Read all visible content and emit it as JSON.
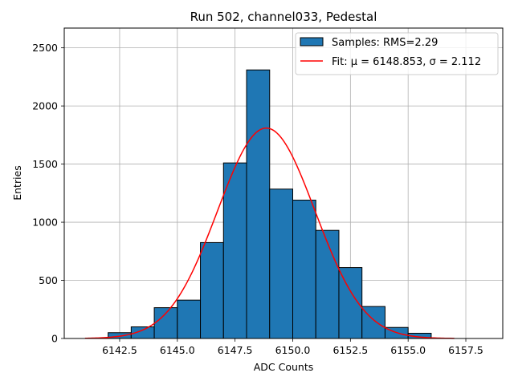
{
  "chart_data": {
    "type": "histogram",
    "title": "Run 502, channel033, Pedestal",
    "xlabel": "ADC Counts",
    "ylabel": "Entries",
    "xlim": [
      6140.1,
      6159.1
    ],
    "ylim": [
      0,
      2670
    ],
    "x_ticks": [
      "6142.5",
      "6145.0",
      "6147.5",
      "6150.0",
      "6152.5",
      "6155.0",
      "6157.5"
    ],
    "y_ticks": [
      "0",
      "500",
      "1000",
      "1500",
      "2000",
      "2500"
    ],
    "grid": true,
    "legend_position": "top-right",
    "bins": [
      {
        "left": 6142,
        "right": 6143,
        "count": 50
      },
      {
        "left": 6143,
        "right": 6144,
        "count": 100
      },
      {
        "left": 6144,
        "right": 6145,
        "count": 265
      },
      {
        "left": 6145,
        "right": 6146,
        "count": 330
      },
      {
        "left": 6146,
        "right": 6147,
        "count": 825
      },
      {
        "left": 6147,
        "right": 6148,
        "count": 1510
      },
      {
        "left": 6148,
        "right": 6149,
        "count": 2310
      },
      {
        "left": 6149,
        "right": 6150,
        "count": 1285
      },
      {
        "left": 6150,
        "right": 6151,
        "count": 1190
      },
      {
        "left": 6151,
        "right": 6152,
        "count": 930
      },
      {
        "left": 6152,
        "right": 6153,
        "count": 610
      },
      {
        "left": 6153,
        "right": 6154,
        "count": 275
      },
      {
        "left": 6154,
        "right": 6155,
        "count": 95
      },
      {
        "left": 6155,
        "right": 6156,
        "count": 45
      }
    ],
    "fit": {
      "mu": 6148.853,
      "sigma": 2.112,
      "amplitude": 1810,
      "x_range": [
        6141,
        6157
      ]
    },
    "series": [
      {
        "name": "Samples: RMS=2.29",
        "color": "#1f77b4",
        "edge_color": "#000000"
      },
      {
        "name": "Fit: μ = 6148.853, σ = 2.112",
        "color": "#ff0000"
      }
    ]
  }
}
